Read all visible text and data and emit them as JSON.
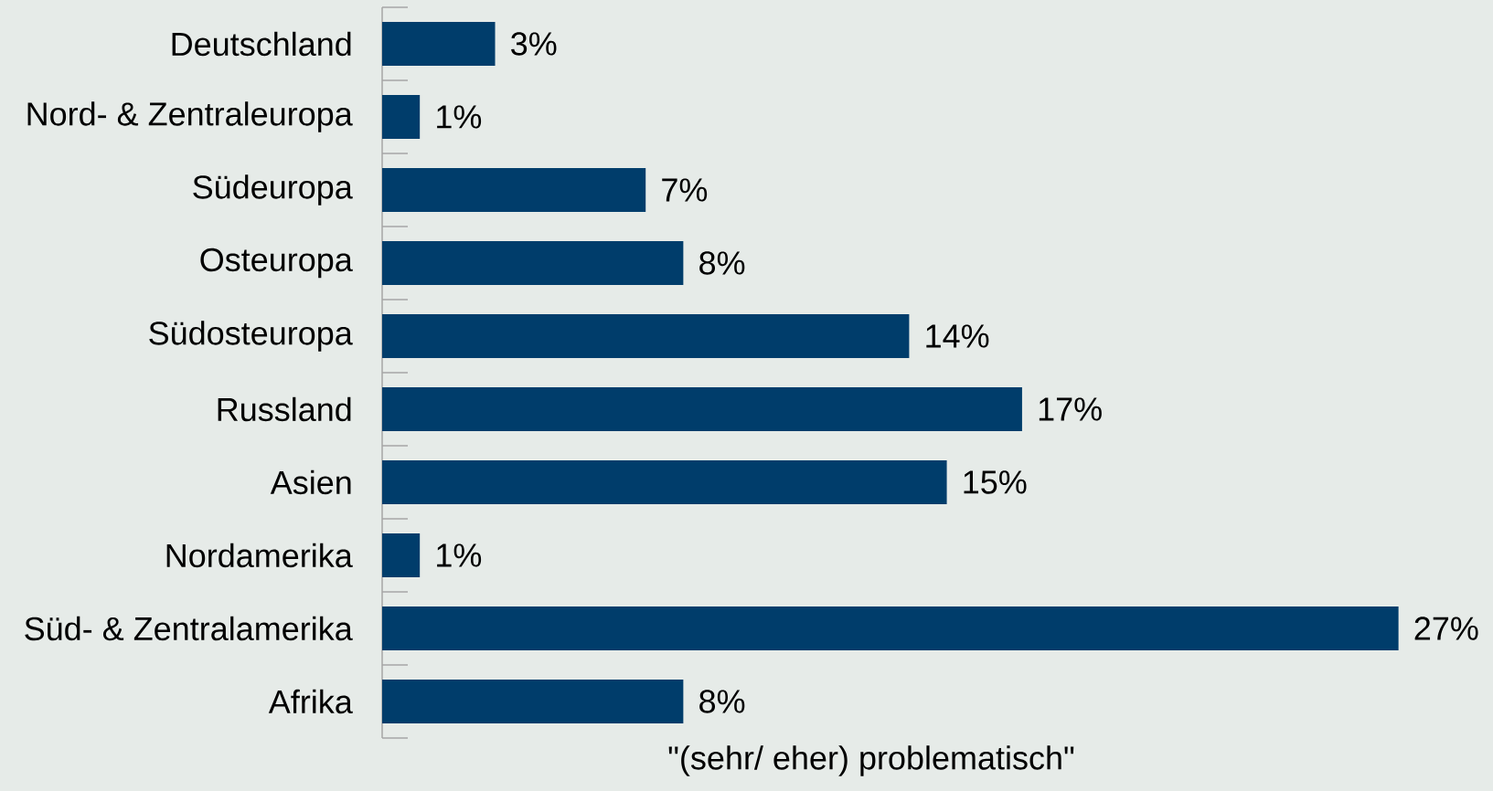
{
  "chart_data": {
    "type": "bar",
    "orientation": "horizontal",
    "categories": [
      "Deutschland",
      "Nord- & Zentraleuropa",
      "Südeuropa",
      "Osteuropa",
      "Südosteuropa",
      "Russland",
      "Asien",
      "Nordamerika",
      "Süd- & Zentralamerika",
      "Afrika"
    ],
    "values": [
      3,
      1,
      7,
      8,
      14,
      17,
      15,
      1,
      27,
      8
    ],
    "value_labels": [
      "3%",
      "1%",
      "7%",
      "8%",
      "14%",
      "17%",
      "15%",
      "1%",
      "27%",
      "8%"
    ],
    "color": "#003d6b",
    "xlabel": "\"(sehr/ eher) problematisch\""
  }
}
